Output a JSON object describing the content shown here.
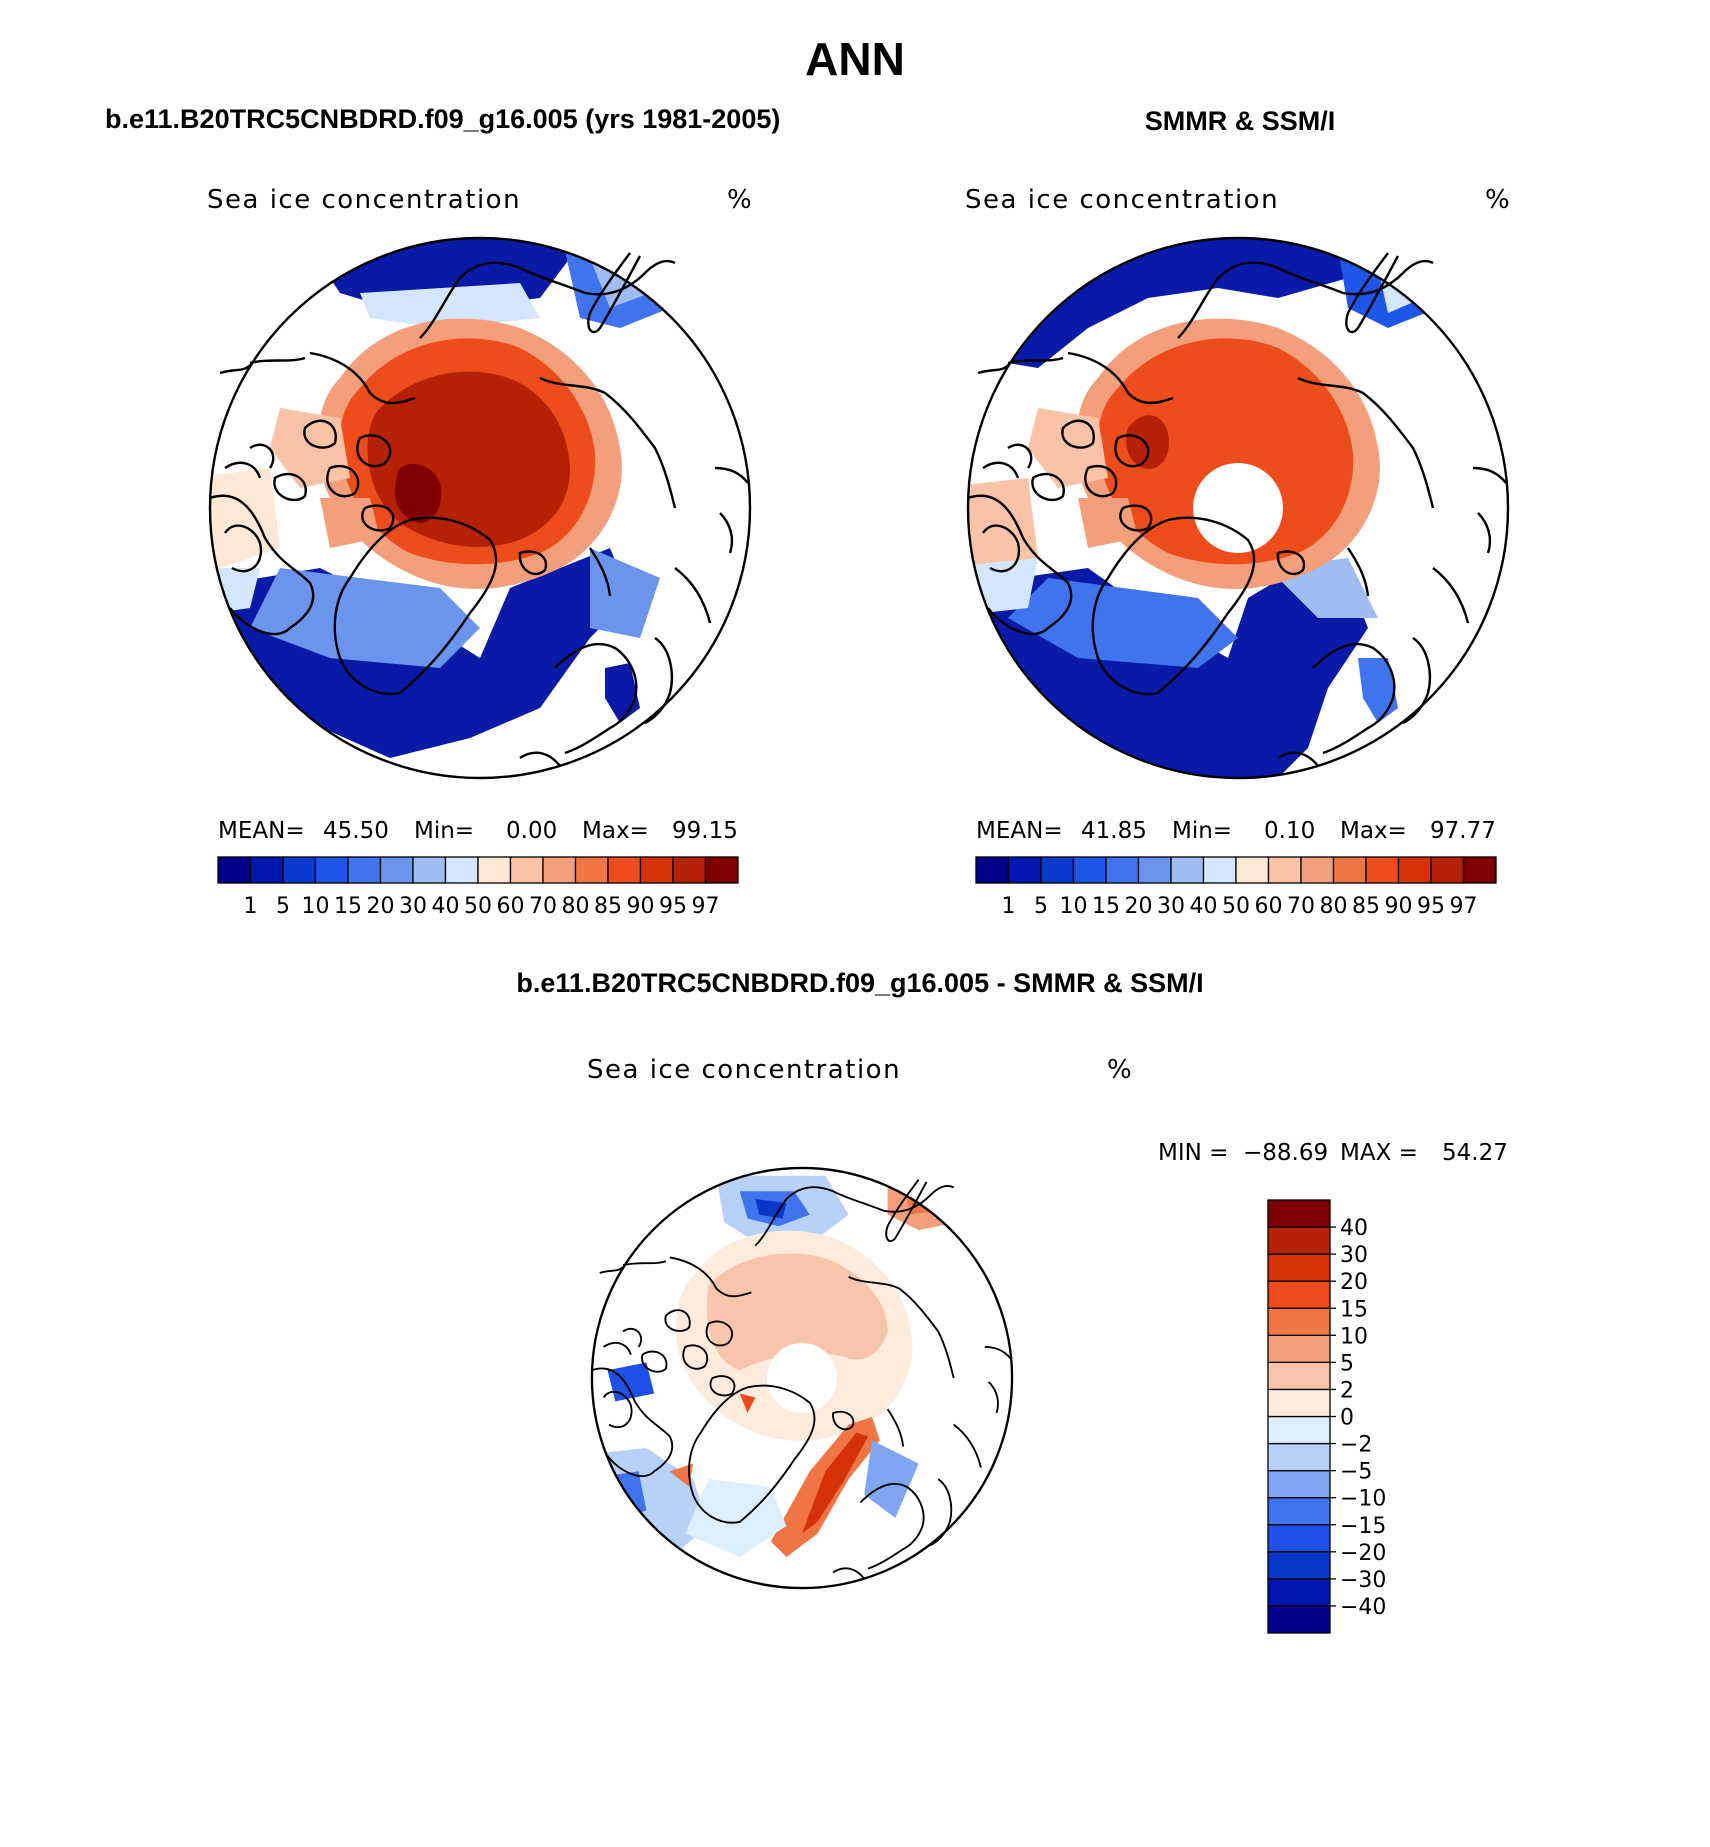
{
  "figure": {
    "title": "ANN",
    "panel_titles": {
      "model": "b.e11.B20TRC5CNBDRD.f09_g16.005 (yrs 1981-2005)",
      "obs": "SMMR & SSM/I",
      "diff": "b.e11.B20TRC5CNBDRD.f09_g16.005 - SMMR & SSM/I"
    },
    "variable": "Sea ice concentration",
    "units": "%"
  },
  "stats": {
    "model": {
      "mean_label": "MEAN=",
      "mean": "45.50",
      "min_label": "Min=",
      "min": "0.00",
      "max_label": "Max=",
      "max": "99.15"
    },
    "obs": {
      "mean_label": "MEAN=",
      "mean": "41.85",
      "min_label": "Min=",
      "min": "0.10",
      "max_label": "Max=",
      "max": "97.77"
    },
    "diff": {
      "min_label": "MIN =",
      "min": "−88.69",
      "max_label": "MAX =",
      "max": "54.27"
    }
  },
  "colorbars": {
    "abs": {
      "colors": [
        "#00008b",
        "#0018b0",
        "#0a3ad0",
        "#1f56ea",
        "#3f74ee",
        "#6b95ec",
        "#9fbcf3",
        "#d4e6fb",
        "#fde8d6",
        "#f8c3a6",
        "#f49f7c",
        "#f07545",
        "#ec4d1b",
        "#d6320a",
        "#b52104",
        "#7f0000"
      ],
      "labels": [
        "1",
        "5",
        "10",
        "15",
        "20",
        "30",
        "40",
        "50",
        "60",
        "70",
        "80",
        "85",
        "90",
        "95",
        "97"
      ]
    },
    "diff": {
      "colors": [
        "#00008b",
        "#0018b0",
        "#0a36c8",
        "#1e50e8",
        "#3f74ee",
        "#7fa7f1",
        "#b8d1f8",
        "#ddeefc",
        "#fdebdd",
        "#f9c5aa",
        "#f49f7c",
        "#f07545",
        "#eb4c1a",
        "#d6320a",
        "#b52104",
        "#7f0000"
      ],
      "labels": [
        "−40",
        "−30",
        "−20",
        "−15",
        "−10",
        "−5",
        "−2",
        "0",
        "2",
        "5",
        "10",
        "15",
        "20",
        "30",
        "40"
      ]
    }
  }
}
